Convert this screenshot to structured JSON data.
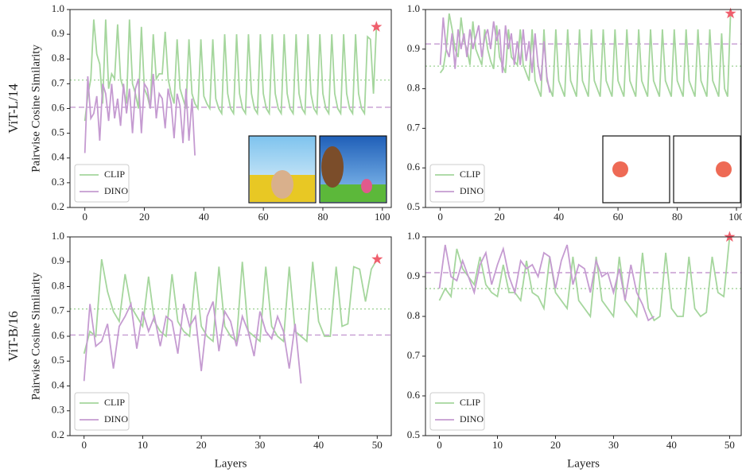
{
  "chart_data": [
    {
      "type": "line",
      "row_label": "ViT-L/14",
      "ylabel": "Pairwise Cosine Similarity",
      "xlim": [
        -5,
        103
      ],
      "ylim": [
        0.2,
        1.0
      ],
      "xticks": [
        0,
        20,
        40,
        60,
        80,
        100
      ],
      "yticks": [
        0.2,
        0.3,
        0.4,
        0.5,
        0.6,
        0.7,
        0.8,
        0.9,
        {
          "value": 1.0,
          "label": "1.0"
        }
      ],
      "legend": "lower left",
      "series": [
        {
          "name": "CLIP",
          "color": "#a5d69d",
          "mean": 0.715,
          "linestyle": "dotted",
          "values": [
            0.55,
            0.65,
            0.72,
            0.96,
            0.82,
            0.78,
            0.62,
            0.96,
            0.68,
            0.74,
            0.72,
            0.94,
            0.72,
            0.68,
            0.62,
            0.96,
            0.7,
            0.66,
            0.6,
            0.93,
            0.68,
            0.65,
            0.6,
            0.9,
            0.72,
            0.74,
            0.74,
            0.91,
            0.72,
            0.66,
            0.62,
            0.88,
            0.68,
            0.64,
            0.6,
            0.88,
            0.66,
            0.62,
            0.6,
            0.88,
            0.65,
            0.62,
            0.6,
            0.88,
            0.64,
            0.6,
            0.58,
            0.9,
            0.66,
            0.6,
            0.58,
            0.9,
            0.66,
            0.6,
            0.58,
            0.9,
            0.66,
            0.6,
            0.58,
            0.9,
            0.66,
            0.6,
            0.58,
            0.9,
            0.66,
            0.6,
            0.58,
            0.9,
            0.66,
            0.6,
            0.58,
            0.9,
            0.66,
            0.6,
            0.58,
            0.9,
            0.66,
            0.6,
            0.58,
            0.9,
            0.66,
            0.6,
            0.58,
            0.9,
            0.66,
            0.6,
            0.58,
            0.9,
            0.66,
            0.6,
            0.58,
            0.9,
            0.66,
            0.6,
            0.58,
            0.89,
            0.88,
            0.66,
            0.93
          ]
        },
        {
          "name": "DINO",
          "color": "#c59bd1",
          "mean": 0.605,
          "linestyle": "dashed",
          "values": [
            0.42,
            0.73,
            0.56,
            0.58,
            0.65,
            0.47,
            0.7,
            0.66,
            0.55,
            0.7,
            0.56,
            0.64,
            0.53,
            0.7,
            0.58,
            0.68,
            0.5,
            0.68,
            0.72,
            0.5,
            0.7,
            0.68,
            0.6,
            0.74,
            0.56,
            0.66,
            0.64,
            0.52,
            0.68,
            0.62,
            0.48,
            0.66,
            0.61,
            0.46,
            0.68,
            0.47,
            0.64,
            0.41
          ]
        }
      ],
      "marker": {
        "x": 98,
        "y": 0.93,
        "color": "#ef5f6d"
      }
    },
    {
      "type": "line",
      "xlim": [
        -5,
        101.6
      ],
      "ylim": [
        0.5,
        1.0
      ],
      "xticks": [
        0,
        20,
        40,
        60,
        80,
        100
      ],
      "yticks": [
        0.5,
        0.6,
        0.7,
        0.8,
        0.9,
        {
          "value": 1.0,
          "label": "1.0"
        }
      ],
      "legend": "lower left",
      "series": [
        {
          "name": "CLIP",
          "color": "#a5d69d",
          "mean": 0.857,
          "linestyle": "dotted",
          "values": [
            0.84,
            0.85,
            0.9,
            0.99,
            0.95,
            0.9,
            0.88,
            0.98,
            0.92,
            0.9,
            0.86,
            0.97,
            0.9,
            0.88,
            0.86,
            0.95,
            0.9,
            0.87,
            0.85,
            0.96,
            0.88,
            0.86,
            0.84,
            0.95,
            0.88,
            0.87,
            0.86,
            0.95,
            0.86,
            0.84,
            0.82,
            0.95,
            0.82,
            0.8,
            0.78,
            0.95,
            0.82,
            0.8,
            0.78,
            0.95,
            0.82,
            0.8,
            0.78,
            0.95,
            0.82,
            0.8,
            0.78,
            0.95,
            0.82,
            0.8,
            0.78,
            0.95,
            0.82,
            0.8,
            0.78,
            0.95,
            0.82,
            0.8,
            0.78,
            0.95,
            0.82,
            0.8,
            0.78,
            0.95,
            0.82,
            0.8,
            0.78,
            0.95,
            0.82,
            0.8,
            0.78,
            0.95,
            0.82,
            0.8,
            0.78,
            0.95,
            0.82,
            0.8,
            0.78,
            0.95,
            0.82,
            0.8,
            0.78,
            0.95,
            0.82,
            0.8,
            0.78,
            0.95,
            0.82,
            0.8,
            0.78,
            0.95,
            0.82,
            0.8,
            0.78,
            0.94,
            0.8,
            0.78,
            0.99
          ]
        },
        {
          "name": "DINO",
          "color": "#c59bd1",
          "mean": 0.913,
          "linestyle": "dashed",
          "values": [
            0.86,
            0.98,
            0.9,
            0.88,
            0.94,
            0.85,
            0.95,
            0.9,
            0.94,
            0.88,
            0.95,
            0.9,
            0.93,
            0.96,
            0.88,
            0.93,
            0.95,
            0.9,
            0.97,
            0.92,
            0.95,
            0.84,
            0.96,
            0.9,
            0.94,
            0.86,
            0.92,
            0.86,
            0.95,
            0.87,
            0.92,
            0.84,
            0.94,
            0.86,
            0.82,
            0.92,
            0.83,
            0.79
          ]
        }
      ],
      "marker": {
        "x": 98,
        "y": 0.99,
        "color": "#ef5f6d"
      }
    },
    {
      "type": "line",
      "row_label": "ViT-B/16",
      "ylabel": "Pairwise Cosine Similarity",
      "xlabel": "Layers",
      "xlim": [
        -2.4,
        52.4
      ],
      "ylim": [
        0.2,
        1.0
      ],
      "xticks": [
        0,
        10,
        20,
        30,
        40,
        50
      ],
      "yticks": [
        0.2,
        0.3,
        0.4,
        0.5,
        0.6,
        0.7,
        0.8,
        0.9,
        {
          "value": 1.0,
          "label": "1.0"
        }
      ],
      "legend": "lower left",
      "series": [
        {
          "name": "CLIP",
          "color": "#a5d69d",
          "mean": 0.71,
          "linestyle": "dotted",
          "values": [
            0.53,
            0.62,
            0.6,
            0.91,
            0.78,
            0.7,
            0.66,
            0.85,
            0.72,
            0.68,
            0.64,
            0.84,
            0.66,
            0.62,
            0.6,
            0.85,
            0.66,
            0.62,
            0.6,
            0.86,
            0.64,
            0.6,
            0.58,
            0.88,
            0.64,
            0.6,
            0.58,
            0.9,
            0.62,
            0.6,
            0.58,
            0.88,
            0.64,
            0.6,
            0.58,
            0.88,
            0.62,
            0.6,
            0.58,
            0.9,
            0.66,
            0.6,
            0.6,
            0.88,
            0.64,
            0.65,
            0.88,
            0.87,
            0.74,
            0.87,
            0.91
          ]
        },
        {
          "name": "DINO",
          "color": "#c59bd1",
          "mean": 0.605,
          "linestyle": "dashed",
          "values": [
            0.42,
            0.73,
            0.56,
            0.58,
            0.65,
            0.47,
            0.64,
            0.68,
            0.73,
            0.55,
            0.7,
            0.62,
            0.68,
            0.56,
            0.68,
            0.66,
            0.53,
            0.73,
            0.64,
            0.68,
            0.46,
            0.68,
            0.74,
            0.54,
            0.7,
            0.66,
            0.56,
            0.68,
            0.62,
            0.52,
            0.7,
            0.62,
            0.59,
            0.68,
            0.62,
            0.47,
            0.65,
            0.41
          ]
        }
      ],
      "marker": {
        "x": 50,
        "y": 0.91,
        "color": "#ef5f6d"
      }
    },
    {
      "type": "line",
      "xlabel": "Layers",
      "xlim": [
        -2.4,
        52
      ],
      "ylim": [
        0.5,
        1.0
      ],
      "xticks": [
        0,
        10,
        20,
        30,
        40,
        50
      ],
      "yticks": [
        0.5,
        0.6,
        0.7,
        0.8,
        0.9,
        {
          "value": 1.0,
          "label": "1.0"
        }
      ],
      "legend": "lower left",
      "series": [
        {
          "name": "CLIP",
          "color": "#a5d69d",
          "mean": 0.87,
          "linestyle": "dotted",
          "values": [
            0.84,
            0.87,
            0.85,
            0.97,
            0.92,
            0.9,
            0.88,
            0.95,
            0.88,
            0.86,
            0.85,
            0.93,
            0.86,
            0.86,
            0.84,
            0.94,
            0.86,
            0.85,
            0.82,
            0.95,
            0.86,
            0.84,
            0.82,
            0.95,
            0.84,
            0.82,
            0.8,
            0.95,
            0.84,
            0.82,
            0.8,
            0.95,
            0.84,
            0.82,
            0.8,
            0.96,
            0.82,
            0.79,
            0.8,
            0.96,
            0.82,
            0.8,
            0.8,
            0.95,
            0.82,
            0.8,
            0.81,
            0.95,
            0.86,
            0.85,
            1.0
          ]
        },
        {
          "name": "DINO",
          "color": "#c59bd1",
          "mean": 0.91,
          "linestyle": "dashed",
          "values": [
            0.87,
            0.98,
            0.9,
            0.89,
            0.94,
            0.9,
            0.86,
            0.93,
            0.96,
            0.88,
            0.93,
            0.97,
            0.9,
            0.86,
            0.94,
            0.92,
            0.93,
            0.9,
            0.96,
            0.95,
            0.87,
            0.94,
            0.98,
            0.88,
            0.93,
            0.92,
            0.86,
            0.94,
            0.9,
            0.91,
            0.86,
            0.92,
            0.84,
            0.93,
            0.86,
            0.83,
            0.79,
            0.8
          ]
        }
      ],
      "marker": {
        "x": 50,
        "y": 1.0,
        "color": "#ef5f6d"
      }
    }
  ]
}
